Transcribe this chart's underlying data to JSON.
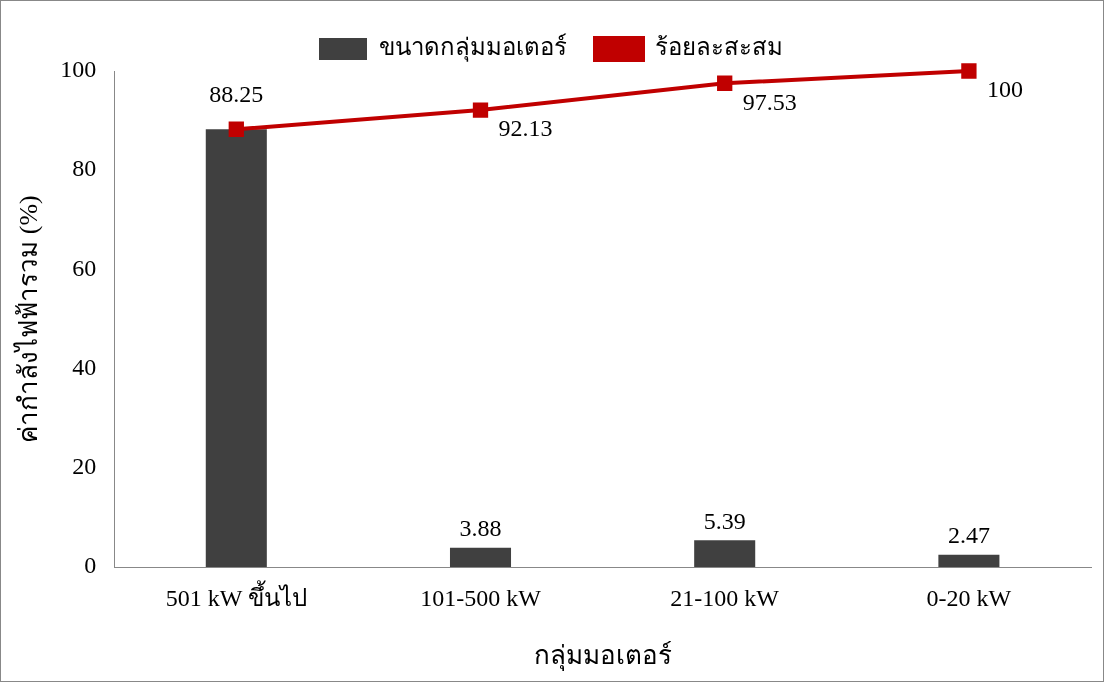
{
  "chart_data": {
    "type": "bar",
    "xlabel": "กลุ่มมอเตอร์",
    "ylabel": "ค่ากำลังไฟฟ้ารวม (%)",
    "categories": [
      "501 kW ขึ้นไป",
      "101-500 kW",
      "21-100 kW",
      "0-20 kW"
    ],
    "series": [
      {
        "name": "ขนาดกลุ่มมอเตอร์",
        "color": "#404040",
        "values": [
          88.25,
          3.88,
          5.39,
          2.47
        ],
        "value_labels": [
          null,
          "3.88",
          "5.39",
          "2.47"
        ]
      },
      {
        "name": "ร้อยละสะสม",
        "type": "line",
        "color": "#c00000",
        "values": [
          88.25,
          92.13,
          97.53,
          100
        ],
        "value_labels": [
          "88.25",
          "92.13",
          "97.53",
          "100"
        ]
      }
    ],
    "ylim": [
      0,
      100
    ],
    "yticks": [
      0,
      20,
      40,
      60,
      80,
      100
    ],
    "grid": false,
    "legend": "top",
    "marker": "square",
    "line_style": "solid"
  }
}
